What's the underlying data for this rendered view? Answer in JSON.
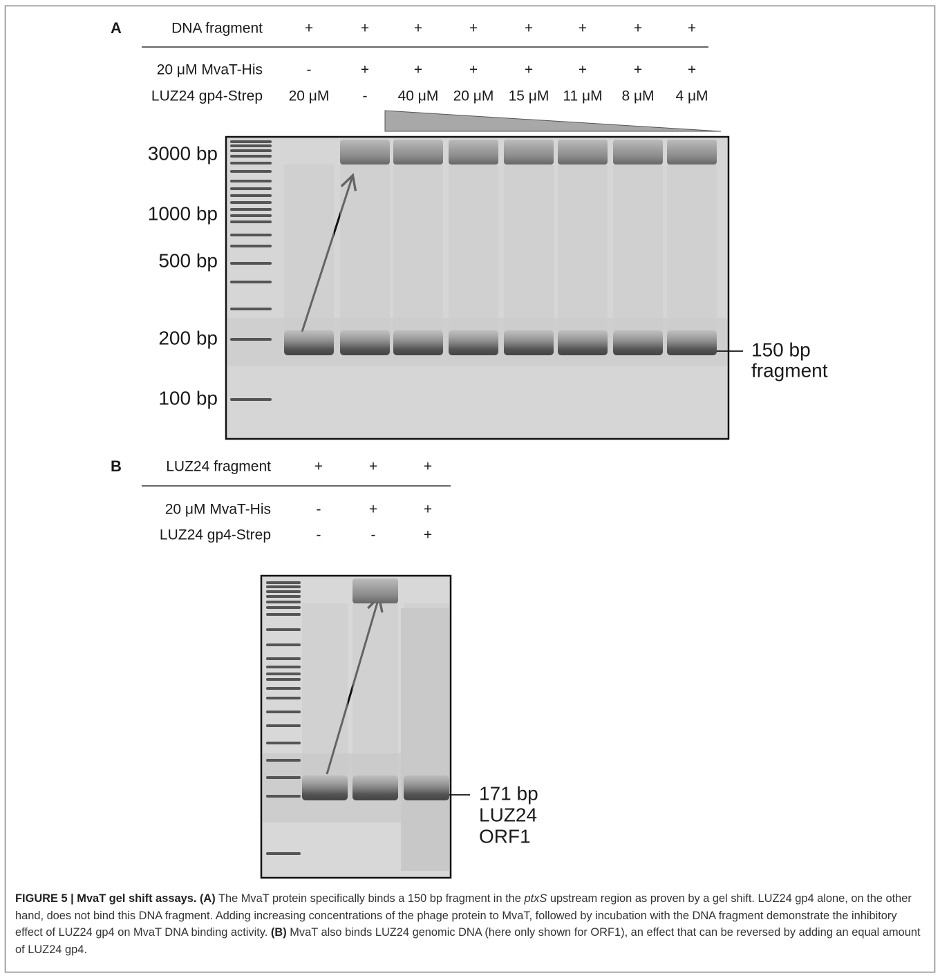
{
  "panel_a": {
    "label": "A",
    "rows": [
      {
        "label": "DNA fragment",
        "values": [
          "+",
          "+",
          "+",
          "+",
          "+",
          "+",
          "+",
          "+"
        ]
      },
      {
        "label": "20 μM MvaT-His",
        "values": [
          "-",
          "+",
          "+",
          "+",
          "+",
          "+",
          "+",
          "+"
        ]
      },
      {
        "label": "LUZ24 gp4-Strep",
        "values": [
          "20 μM",
          "-",
          "40 μM",
          "20 μM",
          "15 μM",
          "11 μM",
          "8 μM",
          "4 μM"
        ]
      }
    ],
    "markers": [
      "3000 bp",
      "1000 bp",
      "500 bp",
      "200 bp",
      "100 bp"
    ],
    "band_label": [
      "150 bp",
      "fragment"
    ]
  },
  "panel_b": {
    "label": "B",
    "rows": [
      {
        "label": "LUZ24 fragment",
        "values": [
          "+",
          "+",
          "+"
        ]
      },
      {
        "label": "20 μM MvaT-His",
        "values": [
          "-",
          "+",
          "+"
        ]
      },
      {
        "label": "LUZ24 gp4-Strep",
        "values": [
          "-",
          "-",
          "+"
        ]
      }
    ],
    "band_label": [
      "171 bp",
      "LUZ24",
      "ORF1"
    ]
  },
  "caption": {
    "title": "FIGURE 5 | MvaT gel shift assays.",
    "a_label": "(A)",
    "a_text_1": "The MvaT protein specifically binds a 150 bp fragment in the",
    "a_italic": "ptxS",
    "a_text_2": "upstream region as proven by a gel shift. LUZ24 gp4 alone, on the other hand, does not bind this DNA fragment. Adding increasing concentrations of the phage protein to MvaT, followed by incubation with the DNA fragment demonstrate the inhibitory effect of LUZ24 gp4 on MvaT DNA binding activity.",
    "b_label": "(B)",
    "b_text": "MvaT also binds LUZ24 genomic DNA (here only shown for ORF1), an effect that can be reversed by adding an equal amount of LUZ24 gp4."
  }
}
